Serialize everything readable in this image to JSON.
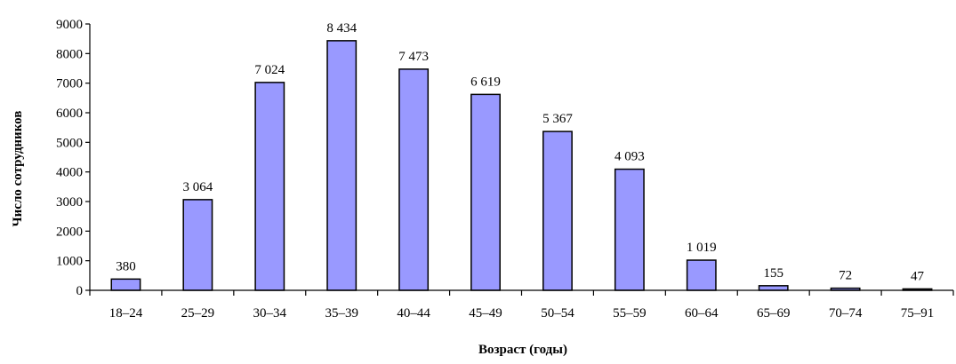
{
  "chart_data": {
    "type": "bar",
    "xlabel": "Возраст (годы)",
    "ylabel": "Число сотрудников",
    "ylim": [
      0,
      9000
    ],
    "yticks": [
      0,
      1000,
      2000,
      3000,
      4000,
      5000,
      6000,
      7000,
      8000,
      9000
    ],
    "ytick_labels": [
      "0",
      "1000",
      "2000",
      "3000",
      "4000",
      "5000",
      "6000",
      "7000",
      "8000",
      "9000"
    ],
    "categories": [
      "18–24",
      "25–29",
      "30–34",
      "35–39",
      "40–44",
      "45–49",
      "50–54",
      "55–59",
      "60–64",
      "65–69",
      "70–74",
      "75–91"
    ],
    "values": [
      380,
      3064,
      7024,
      8434,
      7473,
      6619,
      5367,
      4093,
      1019,
      155,
      72,
      47
    ],
    "value_labels": [
      "380",
      "3 064",
      "7 024",
      "8 434",
      "7 473",
      "6 619",
      "5 367",
      "4 093",
      "1 019",
      "155",
      "72",
      "47"
    ],
    "bar_color": "#9999ff",
    "grid": false,
    "legend": "none"
  }
}
